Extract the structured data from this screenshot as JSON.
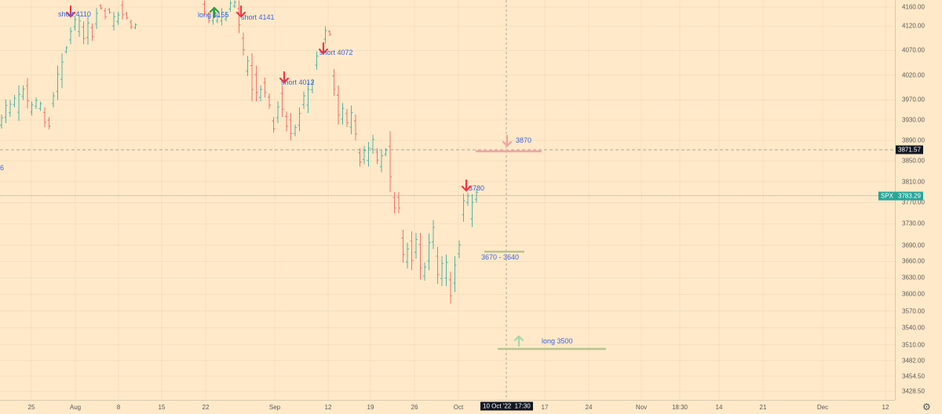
{
  "chart_data": {
    "type": "ohlc",
    "symbol": "SPX",
    "scale": "log",
    "ylim": [
      3420,
      4175
    ],
    "price_ticks": [
      "4160.00",
      "4120.00",
      "4070.00",
      "4020.00",
      "3970.00",
      "3930.00",
      "3890.00",
      "3850.00",
      "3810.00",
      "3770.00",
      "3730.00",
      "3690.00",
      "3660.00",
      "3630.00",
      "3600.00",
      "3570.00",
      "3540.00",
      "3510.00",
      "3482.00",
      "3454.50",
      "3428.50"
    ],
    "time_ticks": [
      "25",
      "Aug",
      "8",
      "15",
      "22",
      "Sep",
      "12",
      "19",
      "26",
      "Oct",
      "17",
      "24",
      "Nov",
      "18:30",
      "14",
      "21",
      "Dec",
      "12"
    ],
    "crosshair": {
      "time_label": "10 Oct '22  17:30",
      "price_label": "3871.57",
      "price": 3871.57
    },
    "last_price": {
      "symbol": "SPX",
      "value": "3783.29",
      "price": 3783.29
    },
    "colors": {
      "up": "#26a69a",
      "down": "#ef5350",
      "background": "#ffe9c8",
      "annotation_text": "#3d63e0",
      "short_arrow": "#f23645",
      "long_arrow": "#2e9e3e"
    },
    "bars": [
      [
        0,
        3941,
        3913,
        "up"
      ],
      [
        1,
        3971,
        3924,
        "up"
      ],
      [
        2,
        3970,
        3936,
        "up"
      ],
      [
        3,
        3980,
        3955,
        "up"
      ],
      [
        4,
        3999,
        3928,
        "up"
      ],
      [
        5,
        3999,
        3970,
        "up"
      ],
      [
        6,
        4014,
        3953,
        "down"
      ],
      [
        7,
        3967,
        3939,
        "up"
      ],
      [
        8,
        3975,
        3952,
        "up"
      ],
      [
        9,
        3967,
        3948,
        "up"
      ],
      [
        10,
        3955,
        3916,
        "down"
      ],
      [
        11,
        3936,
        3912,
        "down"
      ],
      [
        12,
        3986,
        3955,
        "up"
      ],
      [
        13,
        4039,
        3970,
        "up"
      ],
      [
        14,
        4064,
        3994,
        "up"
      ],
      [
        15,
        4079,
        4064,
        "up"
      ],
      [
        16,
        4118,
        4083,
        "up"
      ],
      [
        17,
        4142,
        4111,
        "up"
      ],
      [
        18,
        4142,
        4098,
        "up"
      ],
      [
        19,
        4130,
        4083,
        "down"
      ],
      [
        20,
        4142,
        4082,
        "up"
      ],
      [
        21,
        4126,
        4090,
        "down"
      ],
      [
        22,
        4158,
        4114,
        "up"
      ],
      [
        23,
        4166,
        4155,
        "down"
      ],
      [
        24,
        4158,
        4134,
        "down"
      ],
      [
        25,
        4158,
        4146,
        "down"
      ],
      [
        26,
        4150,
        4111,
        "up"
      ],
      [
        27,
        4150,
        4123,
        "up"
      ],
      [
        28,
        4174,
        4134,
        "down"
      ],
      [
        29,
        4150,
        4134,
        "down"
      ],
      [
        30,
        4134,
        4114,
        "down"
      ],
      [
        31,
        4126,
        4114,
        "up"
      ],
      [
        47,
        4174,
        4142,
        "down"
      ],
      [
        48,
        4150,
        4126,
        "down"
      ],
      [
        49,
        4158,
        4123,
        "up"
      ],
      [
        50,
        4146,
        4126,
        "up"
      ],
      [
        51,
        4158,
        4122,
        "up"
      ],
      [
        52,
        4150,
        4130,
        "up"
      ],
      [
        53,
        4174,
        4150,
        "up"
      ],
      [
        54,
        4174,
        4158,
        "up"
      ],
      [
        55,
        4174,
        4106,
        "down"
      ],
      [
        56,
        4107,
        4060,
        "down"
      ],
      [
        57,
        4059,
        4018,
        "up"
      ],
      [
        58,
        4064,
        3967,
        "down"
      ],
      [
        59,
        4039,
        3967,
        "down"
      ],
      [
        60,
        3999,
        3967,
        "up"
      ],
      [
        61,
        4015,
        3975,
        "down"
      ],
      [
        62,
        3983,
        3952,
        "down"
      ],
      [
        63,
        3936,
        3905,
        "down"
      ],
      [
        64,
        3967,
        3924,
        "up"
      ],
      [
        65,
        3999,
        3936,
        "down"
      ],
      [
        66,
        3947,
        3908,
        "down"
      ],
      [
        67,
        3944,
        3890,
        "down"
      ],
      [
        68,
        3921,
        3898,
        "up"
      ],
      [
        69,
        3955,
        3908,
        "up"
      ],
      [
        70,
        3987,
        3952,
        "up"
      ],
      [
        71,
        4007,
        3944,
        "up"
      ],
      [
        72,
        4012,
        3983,
        "up"
      ],
      [
        73,
        4068,
        4031,
        "up"
      ],
      [
        75,
        4120,
        4084,
        "up"
      ],
      [
        76,
        4112,
        4100,
        "down"
      ],
      [
        77,
        4032,
        3978,
        "down"
      ],
      [
        78,
        3999,
        3921,
        "down"
      ],
      [
        79,
        3964,
        3921,
        "up"
      ],
      [
        80,
        3952,
        3916,
        "down"
      ],
      [
        81,
        3959,
        3902,
        "up"
      ],
      [
        82,
        3941,
        3890,
        "down"
      ],
      [
        83,
        3875,
        3839,
        "down"
      ],
      [
        84,
        3879,
        3844,
        "up"
      ],
      [
        85,
        3887,
        3839,
        "up"
      ],
      [
        86,
        3901,
        3864,
        "up"
      ],
      [
        87,
        3875,
        3844,
        "down"
      ],
      [
        88,
        3871,
        3828,
        "up"
      ],
      [
        89,
        3875,
        3859,
        "up"
      ],
      [
        90,
        3908,
        3790,
        "down"
      ],
      [
        91,
        3790,
        3750,
        "down"
      ],
      [
        92,
        3790,
        3750,
        "down"
      ],
      [
        93,
        3719,
        3658,
        "down"
      ],
      [
        94,
        3695,
        3647,
        "up"
      ],
      [
        95,
        3716,
        3644,
        "down"
      ],
      [
        96,
        3713,
        3665,
        "up"
      ],
      [
        97,
        3713,
        3627,
        "down"
      ],
      [
        98,
        3658,
        3625,
        "up"
      ],
      [
        99,
        3712,
        3644,
        "up"
      ],
      [
        100,
        3737,
        3683,
        "up"
      ],
      [
        101,
        3687,
        3619,
        "down"
      ],
      [
        102,
        3670,
        3615,
        "up"
      ],
      [
        103,
        3673,
        3615,
        "up"
      ],
      [
        104,
        3641,
        3583,
        "down"
      ],
      [
        105,
        3670,
        3604,
        "up"
      ],
      [
        106,
        3699,
        3666,
        "up"
      ],
      [
        107,
        3787,
        3734,
        "up"
      ],
      [
        108,
        3789,
        3764,
        "up"
      ],
      [
        109,
        3786,
        3724,
        "up"
      ],
      [
        110,
        3796,
        3770,
        "up"
      ]
    ],
    "annotations": [
      {
        "text": "short  4110",
        "type": "short"
      },
      {
        "text": "long 4155",
        "type": "long"
      },
      {
        "text": "short 4141",
        "type": "short"
      },
      {
        "text": "short  4012",
        "type": "short"
      },
      {
        "text": "short  4072",
        "type": "short"
      },
      {
        "text": "3780",
        "type": "short"
      },
      {
        "text": "3870",
        "type": "short-target"
      },
      {
        "text": "3670 - 3640",
        "type": "zone"
      },
      {
        "text": "long 3500",
        "type": "long-target"
      },
      {
        "text": "6",
        "type": "cut-off"
      }
    ]
  }
}
